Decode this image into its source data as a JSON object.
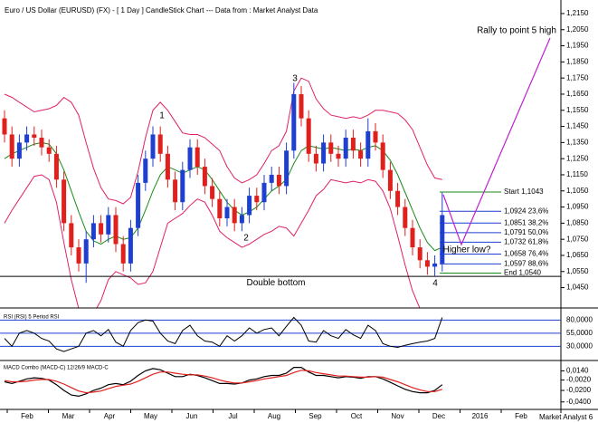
{
  "chart_data": {
    "type": "candlestick",
    "title": "Euro / US Dollar (EURUSD) (FX) - [ 1 Day ] CandleStick Chart --- Data from : Market Analyst Data",
    "footer": "Market Analyst 6",
    "x_labels": [
      "Feb",
      "Mar",
      "Apr",
      "May",
      "Jun",
      "Jul",
      "Aug",
      "Sep",
      "Oct",
      "Nov",
      "Dec",
      "2016",
      "Feb"
    ],
    "up_color": "#1f3fd0",
    "down_color": "#e0201c",
    "open": [
      1.15,
      1.14,
      1.125,
      1.135,
      1.14,
      1.138,
      1.132,
      1.128,
      1.112,
      1.085,
      1.07,
      1.06,
      1.075,
      1.085,
      1.078,
      1.09,
      1.072,
      1.06,
      1.082,
      1.11,
      1.125,
      1.14,
      1.128,
      1.112,
      1.098,
      1.118,
      1.132,
      1.12,
      1.108,
      1.1,
      1.088,
      1.095,
      1.085,
      1.09,
      1.102,
      1.098,
      1.11,
      1.115,
      1.108,
      1.13,
      1.165,
      1.15,
      1.128,
      1.122,
      1.135,
      1.128,
      1.125,
      1.138,
      1.13,
      1.125,
      1.142,
      1.135,
      1.118,
      1.105,
      1.095,
      1.082,
      1.07,
      1.062,
      1.058,
      1.06
    ],
    "high": [
      1.155,
      1.145,
      1.14,
      1.145,
      1.145,
      1.143,
      1.137,
      1.133,
      1.117,
      1.09,
      1.075,
      1.08,
      1.09,
      1.09,
      1.095,
      1.095,
      1.077,
      1.087,
      1.115,
      1.13,
      1.145,
      1.145,
      1.133,
      1.117,
      1.123,
      1.137,
      1.137,
      1.125,
      1.113,
      1.105,
      1.1,
      1.1,
      1.095,
      1.107,
      1.107,
      1.115,
      1.12,
      1.12,
      1.135,
      1.172,
      1.17,
      1.155,
      1.133,
      1.14,
      1.14,
      1.133,
      1.143,
      1.143,
      1.135,
      1.15,
      1.147,
      1.14,
      1.123,
      1.11,
      1.1,
      1.087,
      1.075,
      1.067,
      1.065,
      1.104
    ],
    "low": [
      1.135,
      1.12,
      1.12,
      1.13,
      1.133,
      1.127,
      1.123,
      1.107,
      1.08,
      1.065,
      1.055,
      1.048,
      1.07,
      1.073,
      1.073,
      1.067,
      1.055,
      1.055,
      1.077,
      1.105,
      1.12,
      1.123,
      1.107,
      1.093,
      1.093,
      1.113,
      1.115,
      1.103,
      1.095,
      1.083,
      1.083,
      1.08,
      1.08,
      1.085,
      1.093,
      1.093,
      1.105,
      1.103,
      1.103,
      1.125,
      1.145,
      1.123,
      1.117,
      1.117,
      1.123,
      1.12,
      1.12,
      1.125,
      1.12,
      1.12,
      1.13,
      1.113,
      1.1,
      1.09,
      1.077,
      1.065,
      1.057,
      1.053,
      1.052,
      1.055
    ],
    "close": [
      1.14,
      1.125,
      1.135,
      1.14,
      1.138,
      1.132,
      1.128,
      1.112,
      1.085,
      1.07,
      1.06,
      1.075,
      1.085,
      1.078,
      1.09,
      1.072,
      1.06,
      1.082,
      1.11,
      1.125,
      1.14,
      1.128,
      1.112,
      1.098,
      1.118,
      1.132,
      1.12,
      1.108,
      1.1,
      1.088,
      1.095,
      1.085,
      1.09,
      1.102,
      1.098,
      1.11,
      1.115,
      1.108,
      1.13,
      1.165,
      1.15,
      1.128,
      1.122,
      1.135,
      1.128,
      1.125,
      1.138,
      1.13,
      1.125,
      1.142,
      1.135,
      1.118,
      1.105,
      1.095,
      1.082,
      1.07,
      1.062,
      1.058,
      1.06,
      1.09
    ],
    "series": [
      {
        "color": "#e0206a",
        "values": [
          1.165,
          1.163,
          1.16,
          1.157,
          1.154,
          1.155,
          1.156,
          1.158,
          1.163,
          1.16,
          1.152,
          1.135,
          1.119,
          1.107,
          1.1,
          1.099,
          1.097,
          1.101,
          1.117,
          1.138,
          1.155,
          1.16,
          1.155,
          1.148,
          1.141,
          1.14,
          1.14,
          1.138,
          1.134,
          1.13,
          1.12,
          1.113,
          1.11,
          1.112,
          1.115,
          1.122,
          1.13,
          1.133,
          1.142,
          1.167,
          1.175,
          1.173,
          1.162,
          1.156,
          1.152,
          1.151,
          1.15,
          1.151,
          1.15,
          1.152,
          1.155,
          1.155,
          1.154,
          1.153,
          1.149,
          1.143,
          1.132,
          1.121,
          1.113,
          1.112
        ]
      },
      {
        "color": "#1a8a1a",
        "values": [
          1.125,
          1.128,
          1.13,
          1.132,
          1.134,
          1.135,
          1.134,
          1.128,
          1.118,
          1.105,
          1.092,
          1.08,
          1.074,
          1.072,
          1.075,
          1.077,
          1.075,
          1.076,
          1.082,
          1.093,
          1.105,
          1.115,
          1.12,
          1.118,
          1.116,
          1.118,
          1.12,
          1.118,
          1.112,
          1.105,
          1.098,
          1.093,
          1.09,
          1.092,
          1.095,
          1.1,
          1.105,
          1.108,
          1.112,
          1.122,
          1.13,
          1.133,
          1.132,
          1.131,
          1.132,
          1.131,
          1.13,
          1.131,
          1.13,
          1.132,
          1.133,
          1.13,
          1.124,
          1.115,
          1.104,
          1.093,
          1.082,
          1.073,
          1.068,
          1.07
        ]
      },
      {
        "color": "#e0206a",
        "values": [
          1.085,
          1.093,
          1.1,
          1.107,
          1.114,
          1.115,
          1.112,
          1.098,
          1.073,
          1.05,
          1.032,
          1.025,
          1.029,
          1.037,
          1.05,
          1.055,
          1.053,
          1.051,
          1.047,
          1.048,
          1.055,
          1.07,
          1.085,
          1.088,
          1.091,
          1.096,
          1.1,
          1.098,
          1.09,
          1.08,
          1.076,
          1.073,
          1.07,
          1.072,
          1.075,
          1.078,
          1.08,
          1.083,
          1.082,
          1.077,
          1.085,
          1.093,
          1.102,
          1.106,
          1.112,
          1.111,
          1.11,
          1.111,
          1.11,
          1.112,
          1.111,
          1.105,
          1.094,
          1.077,
          1.059,
          1.043,
          1.032,
          1.025,
          1.023,
          1.028
        ]
      }
    ],
    "ylim": [
      1.0324,
      1.2234
    ],
    "yticks": [
      {
        "value": 1.215,
        "label": "1,2150"
      },
      {
        "value": 1.205,
        "label": "1,2050"
      },
      {
        "value": 1.195,
        "label": "1,1950"
      },
      {
        "value": 1.185,
        "label": "1,1850"
      },
      {
        "value": 1.175,
        "label": "1,1750"
      },
      {
        "value": 1.165,
        "label": "1,1650"
      },
      {
        "value": 1.155,
        "label": "1,1550"
      },
      {
        "value": 1.145,
        "label": "1,1450"
      },
      {
        "value": 1.135,
        "label": "1,1350"
      },
      {
        "value": 1.125,
        "label": "1,1250"
      },
      {
        "value": 1.115,
        "label": "1,1150"
      },
      {
        "value": 1.105,
        "label": "1,1050"
      },
      {
        "value": 1.095,
        "label": "1,0950"
      },
      {
        "value": 1.085,
        "label": "1,0850"
      },
      {
        "value": 1.075,
        "label": "1,0750"
      },
      {
        "value": 1.065,
        "label": "1,0650"
      },
      {
        "value": 1.055,
        "label": "1,0550"
      },
      {
        "value": 1.045,
        "label": "1,0450"
      }
    ],
    "fib_levels": [
      {
        "value": 1.1043,
        "label": "Start 1,1043"
      },
      {
        "value": 1.0924,
        "label": "1,0924 23,6%"
      },
      {
        "value": 1.0851,
        "label": "1,0851 38,2%"
      },
      {
        "value": 1.0791,
        "label": "1,0791 50,0%"
      },
      {
        "value": 1.0732,
        "label": "1,0732 61,8%"
      },
      {
        "value": 1.0658,
        "label": "1,0658 76,4%"
      },
      {
        "value": 1.0597,
        "label": "1,0597 88,6%"
      },
      {
        "value": 1.054,
        "label": "End 1,0540"
      }
    ],
    "double_bottom": {
      "value": 1.052,
      "label": "Double bottom"
    },
    "annotations": [
      "1",
      "2",
      "3",
      "4",
      "Rally to point 5 high",
      "Higher low?"
    ],
    "rsi": {
      "title": "RSI (RSI) 5 Period RSI",
      "color": "#000000",
      "values": [
        45,
        30,
        55,
        60,
        55,
        45,
        40,
        25,
        20,
        25,
        30,
        55,
        60,
        50,
        62,
        38,
        30,
        60,
        75,
        80,
        78,
        55,
        40,
        35,
        60,
        70,
        50,
        40,
        38,
        30,
        50,
        40,
        50,
        65,
        55,
        62,
        65,
        50,
        68,
        85,
        70,
        40,
        38,
        60,
        50,
        45,
        62,
        52,
        45,
        70,
        60,
        35,
        30,
        28,
        32,
        35,
        38,
        40,
        45,
        85
      ],
      "ylim": [
        3,
        103
      ],
      "yticks": [
        {
          "value": 80,
          "label": "80,0000"
        },
        {
          "value": 55,
          "label": "55,0000"
        },
        {
          "value": 30,
          "label": "30,0000"
        }
      ]
    },
    "macd": {
      "title": "MACD Combo (MACD-C) 12/26/9 MACD-C",
      "series": [
        {
          "color": "#000000",
          "values": [
            -0.005,
            -0.008,
            -0.004,
            0,
            0.002,
            0.001,
            -0.002,
            -0.01,
            -0.02,
            -0.028,
            -0.03,
            -0.026,
            -0.02,
            -0.016,
            -0.01,
            -0.008,
            -0.01,
            -0.004,
            0.006,
            0.014,
            0.018,
            0.016,
            0.01,
            0.004,
            0.004,
            0.008,
            0.006,
            0.002,
            -0.003,
            -0.008,
            -0.008,
            -0.009,
            -0.007,
            -0.002,
            0,
            0.004,
            0.006,
            0.006,
            0.01,
            0.02,
            0.02,
            0.012,
            0.006,
            0.006,
            0.004,
            0.002,
            0.004,
            0.003,
            0.001,
            0.004,
            0.004,
            0,
            -0.006,
            -0.012,
            -0.018,
            -0.022,
            -0.024,
            -0.024,
            -0.02,
            -0.01
          ]
        },
        {
          "color": "#e0201c",
          "values": [
            -0.003,
            -0.005,
            -0.005,
            -0.004,
            -0.002,
            -0.001,
            -0.001,
            -0.004,
            -0.009,
            -0.015,
            -0.021,
            -0.024,
            -0.023,
            -0.021,
            -0.017,
            -0.013,
            -0.011,
            -0.009,
            -0.004,
            0.002,
            0.008,
            0.012,
            0.012,
            0.01,
            0.008,
            0.007,
            0.007,
            0.005,
            0.002,
            -0.002,
            -0.005,
            -0.007,
            -0.007,
            -0.005,
            -0.003,
            0,
            0.002,
            0.004,
            0.006,
            0.011,
            0.015,
            0.014,
            0.011,
            0.009,
            0.007,
            0.005,
            0.005,
            0.004,
            0.003,
            0.003,
            0.004,
            0.003,
            -0.001,
            -0.005,
            -0.01,
            -0.015,
            -0.019,
            -0.022,
            -0.022,
            -0.018
          ]
        }
      ],
      "ylim": [
        -0.053,
        0.032
      ],
      "yticks": [
        {
          "value": 0.014,
          "label": "0,0140"
        },
        {
          "value": -0.002,
          "label": "-0,0020"
        },
        {
          "value": -0.02,
          "label": "-0,0200"
        },
        {
          "value": -0.04,
          "label": "-0,0400"
        }
      ]
    }
  }
}
